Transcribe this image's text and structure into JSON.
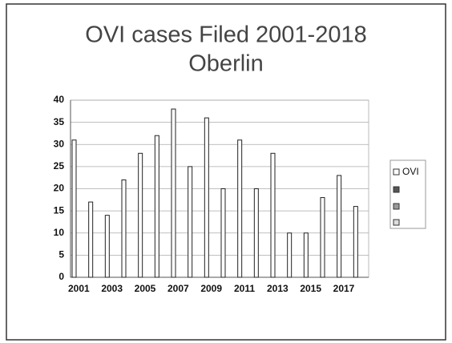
{
  "chart_data": {
    "type": "bar",
    "title": "OVI cases Filed 2001-2018",
    "subtitle": "Oberlin",
    "categories": [
      "2001",
      null,
      "2003",
      null,
      "2005",
      null,
      "2007",
      null,
      "2009",
      null,
      "2011",
      null,
      "2013",
      null,
      "2015",
      null,
      "2017",
      null
    ],
    "series": [
      {
        "name": "OVI",
        "color": "#ffffff",
        "values": [
          31,
          17,
          14,
          22,
          28,
          32,
          38,
          25,
          36,
          20,
          31,
          20,
          28,
          10,
          10,
          18,
          23,
          16
        ]
      }
    ],
    "ylim": [
      0,
      40
    ],
    "yticks": [
      0,
      5,
      10,
      15,
      20,
      25,
      30,
      35,
      40
    ],
    "grid": true,
    "legend": "right"
  }
}
